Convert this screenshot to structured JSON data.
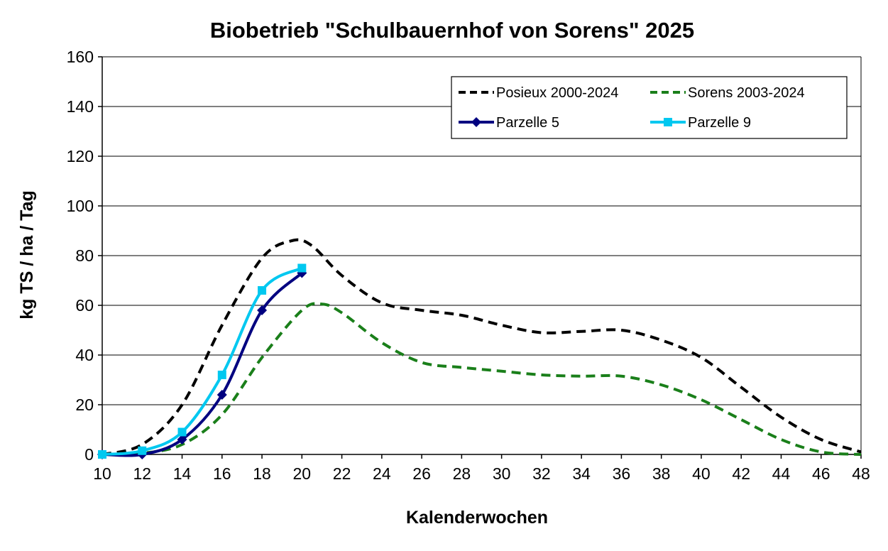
{
  "chart_data": {
    "type": "line",
    "title": "Biobetrieb \"Schulbauernhof von Sorens\" 2025",
    "xlabel": "Kalenderwochen",
    "ylabel": "kg TS / ha / Tag",
    "xlim": [
      10,
      48
    ],
    "ylim": [
      0,
      160
    ],
    "x_ticks": [
      "10",
      "12",
      "14",
      "16",
      "18",
      "20",
      "22",
      "24",
      "26",
      "28",
      "30",
      "32",
      "34",
      "36",
      "38",
      "40",
      "42",
      "44",
      "46",
      "48"
    ],
    "y_ticks": [
      "0",
      "20",
      "40",
      "60",
      "80",
      "100",
      "120",
      "140",
      "160"
    ],
    "grid": "horizontal",
    "legend_position": "top-right",
    "series": [
      {
        "name": "Posieux 2000-2024",
        "color": "#000000",
        "style": "dashed",
        "marker": "none",
        "x": [
          10,
          12,
          14,
          16,
          18,
          19.5,
          20.5,
          22,
          24,
          26,
          28,
          30,
          32,
          34,
          36,
          38,
          40,
          42,
          44,
          46,
          48
        ],
        "y": [
          0,
          4,
          20,
          52,
          79,
          86,
          84,
          72,
          61,
          58,
          56,
          52,
          49,
          49.5,
          50,
          46,
          39,
          27,
          15,
          6,
          1
        ]
      },
      {
        "name": "Sorens 2003-2024",
        "color": "#1a7f1a",
        "style": "dashed",
        "marker": "none",
        "x": [
          10,
          12,
          14,
          16,
          18,
          20,
          21,
          22,
          24,
          26,
          28,
          30,
          32,
          34,
          36,
          38,
          40,
          42,
          44,
          46,
          48
        ],
        "y": [
          0,
          0.5,
          4,
          16,
          39,
          58,
          60.5,
          57,
          45,
          37,
          35,
          33.5,
          32,
          31.5,
          31.5,
          28,
          22,
          14,
          6,
          1,
          0
        ]
      },
      {
        "name": "Parzelle 5",
        "color": "#000080",
        "style": "solid",
        "marker": "diamond",
        "x": [
          10,
          12,
          14,
          16,
          18,
          20
        ],
        "y": [
          0,
          0,
          6,
          24,
          58,
          73
        ]
      },
      {
        "name": "Parzelle 9",
        "color": "#00c8f0",
        "style": "solid",
        "marker": "square",
        "x": [
          10,
          12,
          14,
          16,
          18,
          20
        ],
        "y": [
          0,
          1.5,
          9,
          32,
          66,
          75
        ]
      }
    ]
  }
}
